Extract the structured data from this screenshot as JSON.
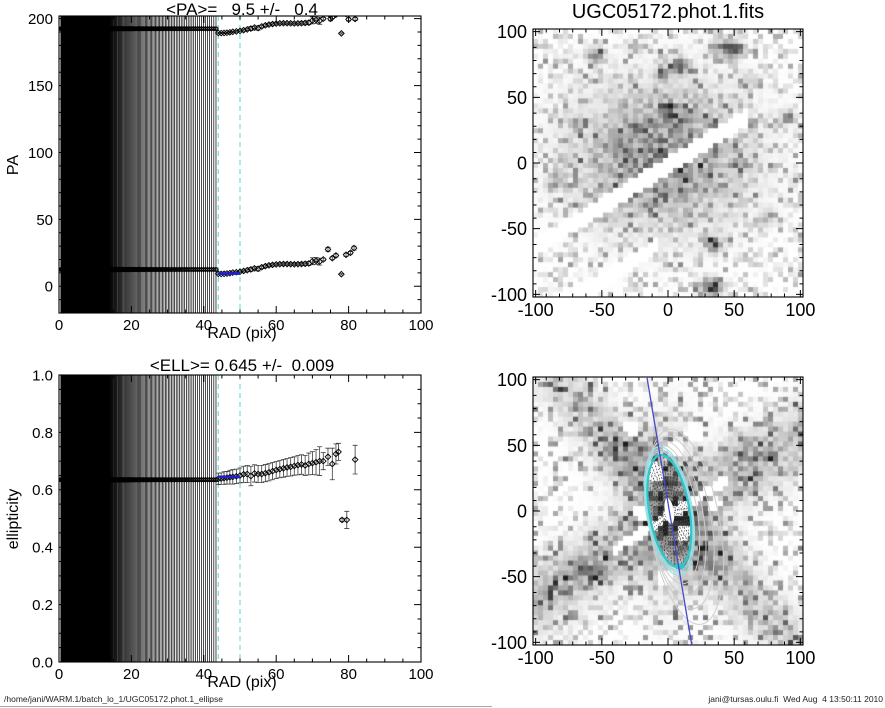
{
  "window": {
    "bg": "#ffffff"
  },
  "footer": {
    "left": "/home/jani/WARM.1/batch_lo_1/UGC05172.phot.1_ellipse",
    "right": "jani@tursas.oulu.fi  Wed Aug  4 13:50:11 2010"
  },
  "colors": {
    "axis": "#000000",
    "guide_cyan": "#7ce0e0",
    "fit_blue": "#2020c8",
    "err_gray": "#3c3c3c"
  },
  "chart_data": [
    {
      "type": "scatter",
      "id": "pa",
      "title": "<PA>=   9.5 +/-   0.4",
      "xlabel": "RAD (pix)",
      "ylabel": "PA",
      "xlim": [
        0,
        100
      ],
      "ylim": [
        -20,
        202
      ],
      "xtick_vals": [
        0,
        20,
        40,
        60,
        80,
        100
      ],
      "xtick_labels": [
        "0",
        "20",
        "40",
        "60",
        "80",
        "100"
      ],
      "xminor": 5,
      "ytick_vals": [
        0,
        50,
        100,
        150,
        200
      ],
      "ytick_labels": [
        "0",
        "50",
        "100",
        "150",
        "200"
      ],
      "yminor": 10,
      "guide_lines_x": [
        44,
        50
      ],
      "fit": {
        "value": 9.5,
        "error": 0.4,
        "range": [
          44,
          50
        ]
      },
      "inner_band": {
        "r_min": 0.5,
        "r_max": 43.5,
        "growth": 1.014,
        "value": 12.5,
        "err": 1.2
      },
      "branch_offset": 180,
      "points": [
        [
          44,
          9.3,
          0.5
        ],
        [
          44.8,
          9.2,
          0.5
        ],
        [
          45.6,
          9.3,
          0.5
        ],
        [
          46.4,
          9.5,
          0.5
        ],
        [
          47.2,
          9.8,
          0.6
        ],
        [
          48,
          10.2,
          0.6
        ],
        [
          49,
          10.5,
          0.7
        ],
        [
          50,
          10.9,
          0.7
        ],
        [
          51,
          11.4,
          0.8
        ],
        [
          52,
          12,
          0.9
        ],
        [
          53,
          12.6,
          1.5
        ],
        [
          54,
          13.4,
          1
        ],
        [
          55,
          13,
          1.6
        ],
        [
          56,
          14.2,
          1
        ],
        [
          57,
          15,
          1
        ],
        [
          58,
          15.6,
          1
        ],
        [
          59,
          16,
          1
        ],
        [
          60,
          16.3,
          1
        ],
        [
          61,
          16.5,
          1
        ],
        [
          62,
          16.6,
          1
        ],
        [
          63,
          16.6,
          1
        ],
        [
          64,
          16.5,
          1
        ],
        [
          65,
          16.4,
          1
        ],
        [
          66,
          16.5,
          1
        ],
        [
          67,
          16.6,
          1.2
        ],
        [
          68,
          16.8,
          1.2
        ],
        [
          69,
          17,
          1.5
        ],
        [
          70,
          18.7,
          2.6
        ],
        [
          71,
          19,
          2.6
        ],
        [
          72,
          18.4,
          2.6
        ],
        [
          73,
          20,
          1
        ],
        [
          74.3,
          27.6,
          1.5
        ],
        [
          75.5,
          21,
          1
        ],
        [
          76.5,
          23,
          1.2
        ],
        [
          78,
          9,
          0.5
        ],
        [
          79.3,
          23.5,
          1.2
        ],
        [
          80.5,
          25,
          1
        ],
        [
          81.5,
          28.5,
          1.5
        ]
      ],
      "extra_points": [
        [
          75,
          199.9,
          1.5
        ],
        [
          80,
          199.5,
          1.2
        ],
        [
          81.8,
          199.8,
          1.2
        ]
      ]
    },
    {
      "type": "scatter",
      "id": "ell",
      "title": "<ELL>= 0.645 +/-  0.009",
      "xlabel": "RAD (pix)",
      "ylabel": "ellipticity",
      "xlim": [
        0,
        100
      ],
      "ylim": [
        0,
        1
      ],
      "xtick_vals": [
        0,
        20,
        40,
        60,
        80,
        100
      ],
      "xtick_labels": [
        "0",
        "20",
        "40",
        "60",
        "80",
        "100"
      ],
      "xminor": 5,
      "ytick_vals": [
        0,
        0.2,
        0.4,
        0.6,
        0.8,
        1
      ],
      "ytick_labels": [
        "0.0",
        "0.2",
        "0.4",
        "0.6",
        "0.8",
        "1.0"
      ],
      "yminor": 0.05,
      "guide_lines_x": [
        44,
        50
      ],
      "fit": {
        "value": 0.645,
        "error": 0.009,
        "range": [
          44,
          50
        ]
      },
      "inner_band": {
        "r_min": 0.5,
        "r_max": 43.5,
        "growth": 1.014,
        "value": 0.635,
        "err": 0.006
      },
      "points": [
        [
          44,
          0.638,
          0.02
        ],
        [
          44.8,
          0.639,
          0.02
        ],
        [
          45.6,
          0.641,
          0.022
        ],
        [
          46.4,
          0.642,
          0.022
        ],
        [
          47.2,
          0.644,
          0.024
        ],
        [
          48,
          0.645,
          0.025
        ],
        [
          49,
          0.647,
          0.025
        ],
        [
          50,
          0.65,
          0.026
        ],
        [
          51,
          0.654,
          0.028
        ],
        [
          52,
          0.655,
          0.03
        ],
        [
          53,
          0.648,
          0.034
        ],
        [
          54,
          0.657,
          0.03
        ],
        [
          55,
          0.655,
          0.03
        ],
        [
          56,
          0.655,
          0.03
        ],
        [
          57,
          0.658,
          0.03
        ],
        [
          58,
          0.661,
          0.03
        ],
        [
          59,
          0.665,
          0.03
        ],
        [
          60,
          0.669,
          0.03
        ],
        [
          61,
          0.672,
          0.03
        ],
        [
          62,
          0.675,
          0.031
        ],
        [
          63,
          0.678,
          0.031
        ],
        [
          64,
          0.68,
          0.032
        ],
        [
          65,
          0.683,
          0.032
        ],
        [
          66,
          0.686,
          0.034
        ],
        [
          67,
          0.688,
          0.034
        ],
        [
          68,
          0.685,
          0.035
        ],
        [
          69,
          0.69,
          0.038
        ],
        [
          70,
          0.693,
          0.04
        ],
        [
          71,
          0.696,
          0.044
        ],
        [
          72,
          0.7,
          0.05
        ],
        [
          73,
          0.7,
          0.03
        ],
        [
          74.3,
          0.715,
          0.03
        ],
        [
          75.5,
          0.69,
          0.055
        ],
        [
          76.5,
          0.725,
          0.035
        ],
        [
          77.2,
          0.732,
          0.03
        ],
        [
          78.2,
          0.495,
          0.006
        ],
        [
          79.5,
          0.495,
          0.03
        ],
        [
          81.8,
          0.705,
          0.05
        ]
      ]
    },
    {
      "type": "heatmap",
      "id": "imgtop",
      "title": "UGC05172.phot.1.fits",
      "xlim": [
        -102,
        102
      ],
      "ylim": [
        -102,
        102
      ],
      "tick_vals": [
        -100,
        -50,
        0,
        50,
        100
      ],
      "tick_labels": [
        "-100",
        "-50",
        "0",
        "50",
        "100"
      ],
      "minor": 10,
      "grid": 54,
      "seed": 7,
      "speckle": 0.45,
      "gray": 120,
      "blobs": [
        [
          -5,
          5,
          42,
          35,
          120
        ],
        [
          0,
          40,
          4,
          4,
          160
        ],
        [
          8,
          74,
          5,
          4,
          130
        ],
        [
          -4,
          68,
          4,
          4,
          95
        ],
        [
          45,
          87,
          7,
          5,
          160
        ],
        [
          -55,
          82,
          5,
          4,
          115
        ],
        [
          -25,
          87,
          4,
          3,
          85
        ],
        [
          -70,
          30,
          4,
          4,
          75
        ],
        [
          35,
          -62,
          5,
          4,
          140
        ],
        [
          33,
          -95,
          6,
          4,
          190
        ],
        [
          -45,
          -30,
          6,
          5,
          65
        ],
        [
          90,
          35,
          4,
          4,
          95
        ],
        [
          75,
          -42,
          4,
          4,
          75
        ],
        [
          -85,
          -15,
          4,
          4,
          60
        ],
        [
          60,
          62,
          5,
          4,
          70
        ]
      ],
      "stripes": [
        [
          0.62,
          -2,
          7,
          -105,
          60
        ],
        [
          0.62,
          -58,
          6,
          -105,
          -8
        ]
      ]
    },
    {
      "type": "heatmap",
      "id": "imgbot",
      "title": "",
      "xlim": [
        -102,
        102
      ],
      "ylim": [
        -102,
        102
      ],
      "tick_vals": [
        -100,
        -50,
        0,
        50,
        100
      ],
      "tick_labels": [
        "-100",
        "-50",
        "0",
        "50",
        "100"
      ],
      "minor": 10,
      "grid": 54,
      "seed": 13,
      "speckle": 0.52,
      "gray": 150,
      "blobs": [
        [
          0,
          0,
          15,
          40,
          90
        ],
        [
          -30,
          40,
          14,
          14,
          60
        ],
        [
          30,
          -35,
          14,
          12,
          55
        ],
        [
          -60,
          -45,
          10,
          8,
          50
        ],
        [
          60,
          50,
          10,
          8,
          45
        ]
      ],
      "bands": [
        [
          0.62,
          -6,
          16,
          70
        ],
        [
          -1.15,
          5,
          13,
          55
        ]
      ],
      "stripes": [
        [
          0.62,
          -4,
          4,
          -40,
          45
        ]
      ],
      "holes": [
        [
          -10,
          30,
          7
        ],
        [
          5,
          47,
          7
        ],
        [
          -20,
          -1,
          6
        ],
        [
          13,
          -16,
          6
        ],
        [
          -3,
          -50,
          6
        ],
        [
          20,
          60,
          7
        ],
        [
          -28,
          63,
          6
        ],
        [
          35,
          5,
          5
        ]
      ],
      "overlay": {
        "pa_deg": 9.5,
        "center": [
          1,
          0
        ],
        "axis_ratio": 0.355,
        "dotted_a": [
          14,
          18,
          22,
          26,
          30,
          34,
          38,
          42
        ],
        "spokes": 36,
        "spoke_max": 42,
        "outer": [
          [
            48,
            0,
            0
          ],
          [
            54,
            2,
            -3
          ],
          [
            60,
            4,
            -6
          ],
          [
            67,
            7,
            -10
          ],
          [
            76,
            10,
            -14
          ]
        ],
        "cyan_thin_a": [
          50,
          46.5
        ],
        "cyan_thick_a": 43.5,
        "colors": {
          "blue_line": "#4848c8",
          "cyan_thin": "#8ae6ea",
          "cyan_thick": "#2ec6cc",
          "outer_gray": "#cdcdcd",
          "dotted_gray": "#555555",
          "spoke": "#2a2a2a"
        }
      }
    }
  ]
}
